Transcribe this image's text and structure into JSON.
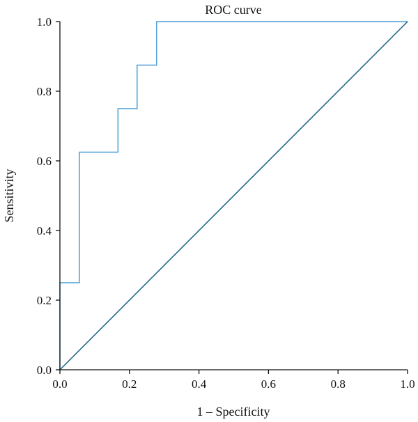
{
  "chart_data": {
    "type": "line",
    "title": "ROC curve",
    "xlabel": "1 – Specificity",
    "ylabel": "Sensitivity",
    "xlim": [
      0,
      1
    ],
    "ylim": [
      0,
      1
    ],
    "x_ticks": [
      "0.0",
      "0.2",
      "0.4",
      "0.6",
      "0.8",
      "1.0"
    ],
    "y_ticks": [
      "0.0",
      "0.2",
      "0.4",
      "0.6",
      "0.8",
      "1.0"
    ],
    "grid": false,
    "legend": "none",
    "series": [
      {
        "color": "#4a9fd8",
        "x": [
          0.0,
          0.0,
          0.056,
          0.056,
          0.167,
          0.167,
          0.222,
          0.222,
          0.278,
          0.278,
          1.0
        ],
        "y": [
          0.0,
          0.25,
          0.25,
          0.625,
          0.625,
          0.75,
          0.75,
          0.875,
          0.875,
          1.0,
          1.0
        ]
      },
      {
        "color": "#1a5f85",
        "x": [
          0.0,
          1.0
        ],
        "y": [
          0.0,
          1.0
        ]
      }
    ],
    "axis_color": "#111111"
  }
}
